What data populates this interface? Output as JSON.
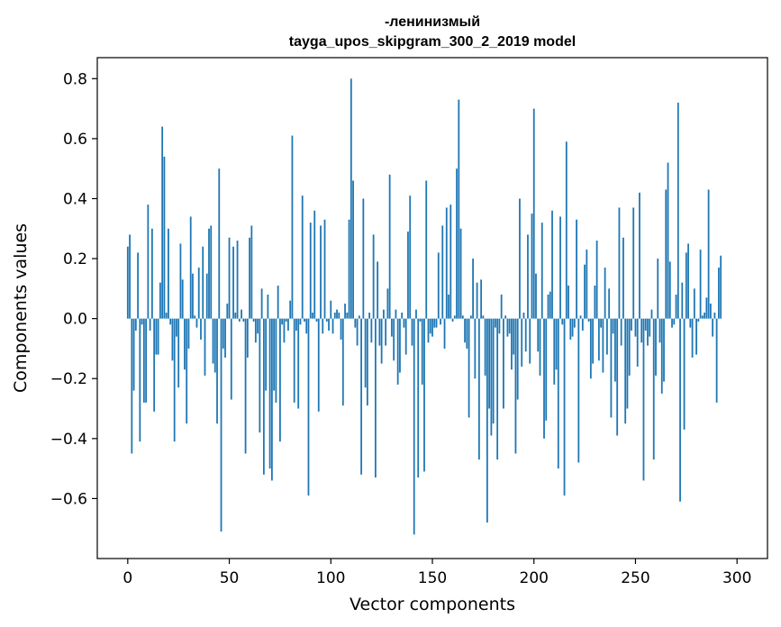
{
  "chart_data": {
    "type": "bar",
    "title_line1": "-ленинизмый",
    "title_line2": "tayga_upos_skipgram_300_2_2019 model",
    "xlabel": "Vector components",
    "ylabel": "Components values",
    "xlim": [
      -15,
      315
    ],
    "ylim": [
      -0.8,
      0.87
    ],
    "xticks": [
      0,
      50,
      100,
      150,
      200,
      250,
      300
    ],
    "yticks": [
      -0.6,
      -0.4,
      -0.2,
      0.0,
      0.2,
      0.4,
      0.6,
      0.8
    ],
    "xtick_labels": [
      "0",
      "50",
      "100",
      "150",
      "200",
      "250",
      "300"
    ],
    "ytick_labels": [
      "−0.6",
      "−0.4",
      "−0.2",
      "0.0",
      "0.2",
      "0.4",
      "0.6",
      "0.8"
    ],
    "color": "#1f77b4",
    "values": [
      0.24,
      0.28,
      -0.45,
      -0.24,
      -0.04,
      0.22,
      -0.41,
      -0.02,
      -0.28,
      -0.28,
      0.38,
      -0.04,
      0.3,
      -0.31,
      -0.12,
      -0.12,
      0.12,
      0.64,
      0.54,
      0.02,
      0.3,
      -0.02,
      -0.14,
      -0.41,
      -0.06,
      -0.23,
      0.25,
      0.13,
      -0.17,
      -0.35,
      -0.1,
      0.34,
      0.15,
      0.01,
      -0.03,
      0.17,
      -0.07,
      0.24,
      -0.19,
      0.15,
      0.3,
      0.31,
      -0.15,
      -0.18,
      -0.35,
      0.5,
      -0.71,
      -0.1,
      -0.13,
      0.05,
      0.27,
      -0.27,
      0.24,
      0.02,
      0.26,
      -0.01,
      0.03,
      -0.01,
      -0.45,
      -0.13,
      0.27,
      0.31,
      -0.01,
      -0.08,
      -0.05,
      -0.38,
      0.1,
      -0.52,
      -0.24,
      0.08,
      -0.5,
      -0.54,
      -0.24,
      -0.28,
      0.11,
      -0.41,
      -0.02,
      -0.08,
      -0.01,
      -0.04,
      0.06,
      0.61,
      -0.28,
      -0.04,
      -0.3,
      -0.02,
      0.41,
      -0.01,
      -0.05,
      -0.59,
      0.32,
      0.02,
      0.36,
      -0.01,
      -0.31,
      0.31,
      -0.05,
      0.33,
      -0.01,
      -0.04,
      0.06,
      -0.05,
      0.02,
      0.03,
      0.02,
      -0.07,
      -0.29,
      0.05,
      0.02,
      0.33,
      0.8,
      0.46,
      -0.03,
      -0.09,
      0.01,
      -0.52,
      0.4,
      -0.23,
      -0.29,
      0.02,
      -0.08,
      0.28,
      -0.53,
      0.19,
      -0.09,
      -0.15,
      0.03,
      -0.09,
      0.1,
      0.48,
      -0.06,
      -0.14,
      0.03,
      -0.22,
      -0.18,
      0.02,
      -0.03,
      -0.12,
      0.29,
      0.41,
      -0.09,
      -0.72,
      0.03,
      -0.53,
      -0.01,
      -0.22,
      -0.51,
      0.46,
      -0.08,
      -0.05,
      -0.06,
      -0.03,
      -0.03,
      0.22,
      -0.02,
      0.31,
      -0.1,
      0.37,
      0.08,
      0.38,
      -0.01,
      0.01,
      0.5,
      0.73,
      0.3,
      0.01,
      -0.08,
      -0.1,
      -0.33,
      0.01,
      0.2,
      -0.2,
      0.12,
      -0.47,
      0.13,
      0.01,
      -0.19,
      -0.68,
      -0.3,
      -0.39,
      -0.35,
      -0.03,
      -0.47,
      -0.05,
      0.08,
      -0.3,
      0.01,
      -0.06,
      -0.05,
      -0.17,
      -0.12,
      -0.45,
      -0.27,
      0.4,
      -0.16,
      0.02,
      -0.11,
      0.28,
      -0.15,
      0.35,
      0.7,
      0.15,
      -0.11,
      -0.19,
      0.32,
      -0.4,
      -0.34,
      0.08,
      0.09,
      0.36,
      -0.22,
      -0.17,
      -0.5,
      0.34,
      -0.02,
      -0.59,
      0.59,
      0.11,
      -0.07,
      -0.06,
      -0.03,
      0.33,
      -0.48,
      0.01,
      -0.04,
      0.18,
      0.23,
      -0.01,
      -0.2,
      -0.15,
      0.11,
      0.26,
      -0.14,
      -0.03,
      -0.18,
      0.17,
      -0.12,
      0.1,
      -0.33,
      -0.05,
      -0.21,
      -0.39,
      0.37,
      -0.09,
      0.27,
      -0.35,
      -0.3,
      -0.19,
      -0.04,
      0.37,
      -0.06,
      -0.16,
      0.42,
      -0.08,
      -0.54,
      -0.04,
      -0.09,
      -0.06,
      0.03,
      -0.47,
      -0.19,
      0.2,
      -0.08,
      -0.25,
      -0.21,
      0.43,
      0.52,
      0.19,
      -0.03,
      -0.02,
      0.08,
      0.72,
      -0.61,
      0.12,
      -0.37,
      0.22,
      0.25,
      -0.03,
      -0.13,
      0.1,
      -0.12,
      -0.01,
      0.23,
      0.01,
      0.02,
      0.07,
      0.43,
      0.05,
      -0.06,
      0.02,
      -0.28,
      0.17,
      0.21
    ]
  }
}
